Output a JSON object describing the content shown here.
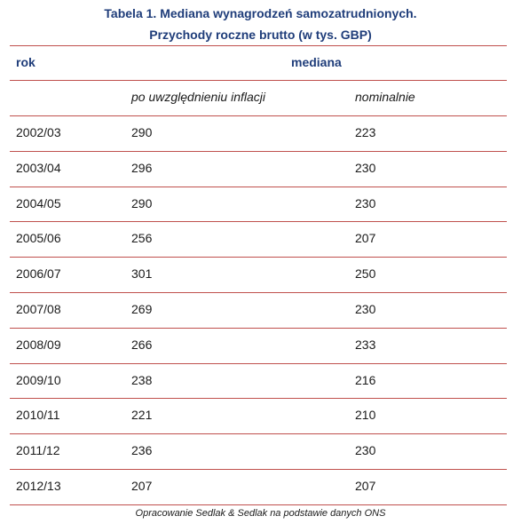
{
  "title_line1": "Tabela 1. Mediana wynagrodzeń samozatrudnionych.",
  "title_line2": "Przychody roczne brutto (w tys. GBP)",
  "header": {
    "year": "rok",
    "median": "mediana",
    "real": "po uwzględnieniu inflacji",
    "nominal": "nominalnie"
  },
  "rows": [
    {
      "year": "2002/03",
      "real": "290",
      "nominal": "223"
    },
    {
      "year": "2003/04",
      "real": "296",
      "nominal": "230"
    },
    {
      "year": "2004/05",
      "real": "290",
      "nominal": "230"
    },
    {
      "year": "2005/06",
      "real": "256",
      "nominal": "207"
    },
    {
      "year": "2006/07",
      "real": "301",
      "nominal": "250"
    },
    {
      "year": "2007/08",
      "real": "269",
      "nominal": "230"
    },
    {
      "year": "2008/09",
      "real": "266",
      "nominal": "233"
    },
    {
      "year": "2009/10",
      "real": "238",
      "nominal": "216"
    },
    {
      "year": "2010/11",
      "real": "221",
      "nominal": "210"
    },
    {
      "year": "2011/12",
      "real": "236",
      "nominal": "230"
    },
    {
      "year": "2012/13",
      "real": "207",
      "nominal": "207"
    }
  ],
  "footer": "Opracowanie Sedlak & Sedlak na podstawie danych ONS",
  "colors": {
    "title": "#1f3d7a",
    "rule": "#c0504d",
    "text": "#1a1a1a"
  }
}
